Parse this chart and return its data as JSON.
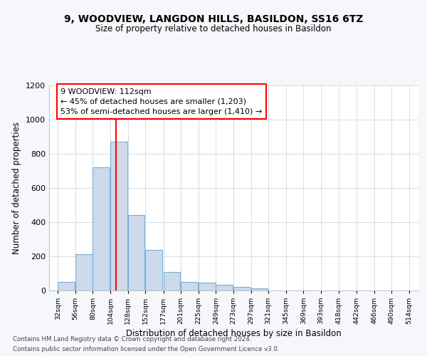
{
  "title1": "9, WOODVIEW, LANGDON HILLS, BASILDON, SS16 6TZ",
  "title2": "Size of property relative to detached houses in Basildon",
  "xlabel": "Distribution of detached houses by size in Basildon",
  "ylabel": "Number of detached properties",
  "bar_color": "#ccdaec",
  "bar_edge_color": "#7aafd4",
  "bar_left_edges": [
    32,
    56,
    80,
    104,
    128,
    152,
    177,
    201,
    225,
    249,
    273,
    297
  ],
  "bar_widths": [
    24,
    24,
    24,
    24,
    24,
    24,
    24,
    24,
    24,
    24,
    24,
    24
  ],
  "bar_heights": [
    50,
    210,
    720,
    870,
    440,
    235,
    105,
    50,
    45,
    30,
    18,
    10
  ],
  "all_tick_labels": [
    "32sqm",
    "56sqm",
    "80sqm",
    "104sqm",
    "128sqm",
    "152sqm",
    "177sqm",
    "201sqm",
    "225sqm",
    "249sqm",
    "273sqm",
    "297sqm",
    "321sqm",
    "345sqm",
    "369sqm",
    "393sqm",
    "418sqm",
    "442sqm",
    "466sqm",
    "490sqm",
    "514sqm"
  ],
  "all_tick_positions": [
    32,
    56,
    80,
    104,
    128,
    152,
    177,
    201,
    225,
    249,
    273,
    297,
    321,
    345,
    369,
    393,
    418,
    442,
    466,
    490,
    514
  ],
  "xlim": [
    20,
    527
  ],
  "ylim": [
    0,
    1200
  ],
  "yticks": [
    0,
    200,
    400,
    600,
    800,
    1000,
    1200
  ],
  "red_line_x": 112,
  "annotation_line1": "9 WOODVIEW: 112sqm",
  "annotation_line2": "← 45% of detached houses are smaller (1,203)",
  "annotation_line3": "53% of semi-detached houses are larger (1,410) →",
  "footer_line1": "Contains HM Land Registry data © Crown copyright and database right 2024.",
  "footer_line2": "Contains public sector information licensed under the Open Government Licence v3.0.",
  "background_color": "#f5f7fa",
  "plot_bg_color": "#ffffff",
  "grid_color": "#d4dde8"
}
